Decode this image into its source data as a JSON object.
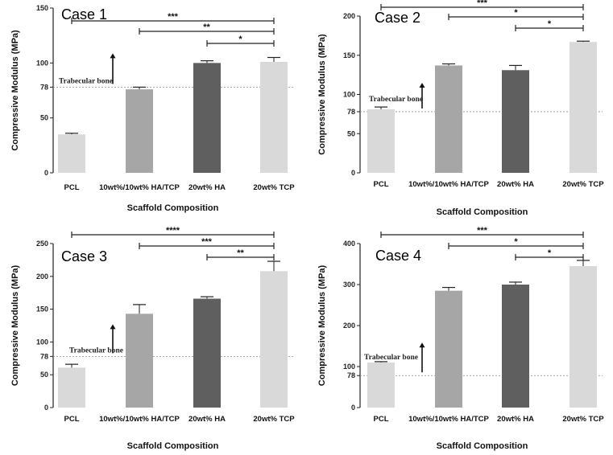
{
  "chart_data": [
    {
      "type": "bar",
      "title": "Case 1",
      "ylabel": "Compressive Modulus (MPa)",
      "xlabel": "Scaffold Composition",
      "categories": [
        "PCL",
        "10wt%/10wt% HA/TCP",
        "20wt% HA",
        "20wt% TCP"
      ],
      "values": [
        35,
        76,
        100,
        101
      ],
      "errors": [
        1,
        2,
        2,
        4
      ],
      "colors": [
        "#d9d9d9",
        "#a6a6a6",
        "#5f5f5f",
        "#d9d9d9"
      ],
      "ylim": [
        0,
        150
      ],
      "yticks": [
        0,
        50,
        78,
        100,
        150
      ],
      "reference": {
        "value": 78,
        "label": "Trabecular  bone",
        "arrow_at_category": 1
      },
      "significance": [
        {
          "from": 0,
          "to": 3,
          "label": "***"
        },
        {
          "from": 1,
          "to": 3,
          "label": "**"
        },
        {
          "from": 2,
          "to": 3,
          "label": "*"
        }
      ]
    },
    {
      "type": "bar",
      "title": "Case 2",
      "ylabel": "Compressive Modulus (MPa)",
      "xlabel": "Scaffold Composition",
      "categories": [
        "PCL",
        "10wt%/10wt% HA/TCP",
        "20wt% HA",
        "20wt% TCP"
      ],
      "values": [
        81,
        137,
        131,
        167
      ],
      "errors": [
        3,
        2,
        6,
        1
      ],
      "colors": [
        "#d9d9d9",
        "#a6a6a6",
        "#5f5f5f",
        "#d9d9d9"
      ],
      "ylim": [
        0,
        200
      ],
      "yticks": [
        0,
        50,
        78,
        100,
        150,
        200
      ],
      "reference": {
        "value": 78,
        "label": "Trabecular  bone",
        "arrow_at_category": 1
      },
      "significance": [
        {
          "from": 0,
          "to": 3,
          "label": "***"
        },
        {
          "from": 1,
          "to": 3,
          "label": "*"
        },
        {
          "from": 2,
          "to": 3,
          "label": "*"
        }
      ]
    },
    {
      "type": "bar",
      "title": "Case 3",
      "ylabel": "Compressive Modulus (MPa)",
      "xlabel": "Scaffold Composition",
      "categories": [
        "PCL",
        "10wt%/10wt% HA/TCP",
        "20wt% HA",
        "20wt% TCP"
      ],
      "values": [
        61,
        143,
        166,
        208
      ],
      "errors": [
        5,
        14,
        3,
        15
      ],
      "colors": [
        "#d9d9d9",
        "#a6a6a6",
        "#5f5f5f",
        "#d9d9d9"
      ],
      "ylim": [
        0,
        250
      ],
      "yticks": [
        0,
        50,
        78,
        100,
        150,
        200,
        250
      ],
      "reference": {
        "value": 78,
        "label": "Trabecular  bone",
        "arrow_at_category": 1
      },
      "significance": [
        {
          "from": 0,
          "to": 3,
          "label": "****"
        },
        {
          "from": 1,
          "to": 3,
          "label": "***"
        },
        {
          "from": 2,
          "to": 3,
          "label": "**"
        }
      ]
    },
    {
      "type": "bar",
      "title": "Case 4",
      "ylabel": "Compressive Modulus (MPa)",
      "xlabel": "Scaffold Composition",
      "categories": [
        "PCL",
        "10wt%/10wt% HA/TCP",
        "20wt% HA",
        "20wt% TCP"
      ],
      "values": [
        110,
        285,
        300,
        345
      ],
      "errors": [
        2,
        8,
        6,
        14
      ],
      "colors": [
        "#d9d9d9",
        "#a6a6a6",
        "#5f5f5f",
        "#d9d9d9"
      ],
      "ylim": [
        0,
        400
      ],
      "yticks": [
        0,
        78,
        100,
        200,
        300,
        400
      ],
      "reference": {
        "value": 78,
        "label": "Trabecular  bone",
        "arrow_at_category": 1
      },
      "significance": [
        {
          "from": 0,
          "to": 3,
          "label": "***"
        },
        {
          "from": 1,
          "to": 3,
          "label": "*"
        },
        {
          "from": 2,
          "to": 3,
          "label": "*"
        }
      ]
    }
  ]
}
